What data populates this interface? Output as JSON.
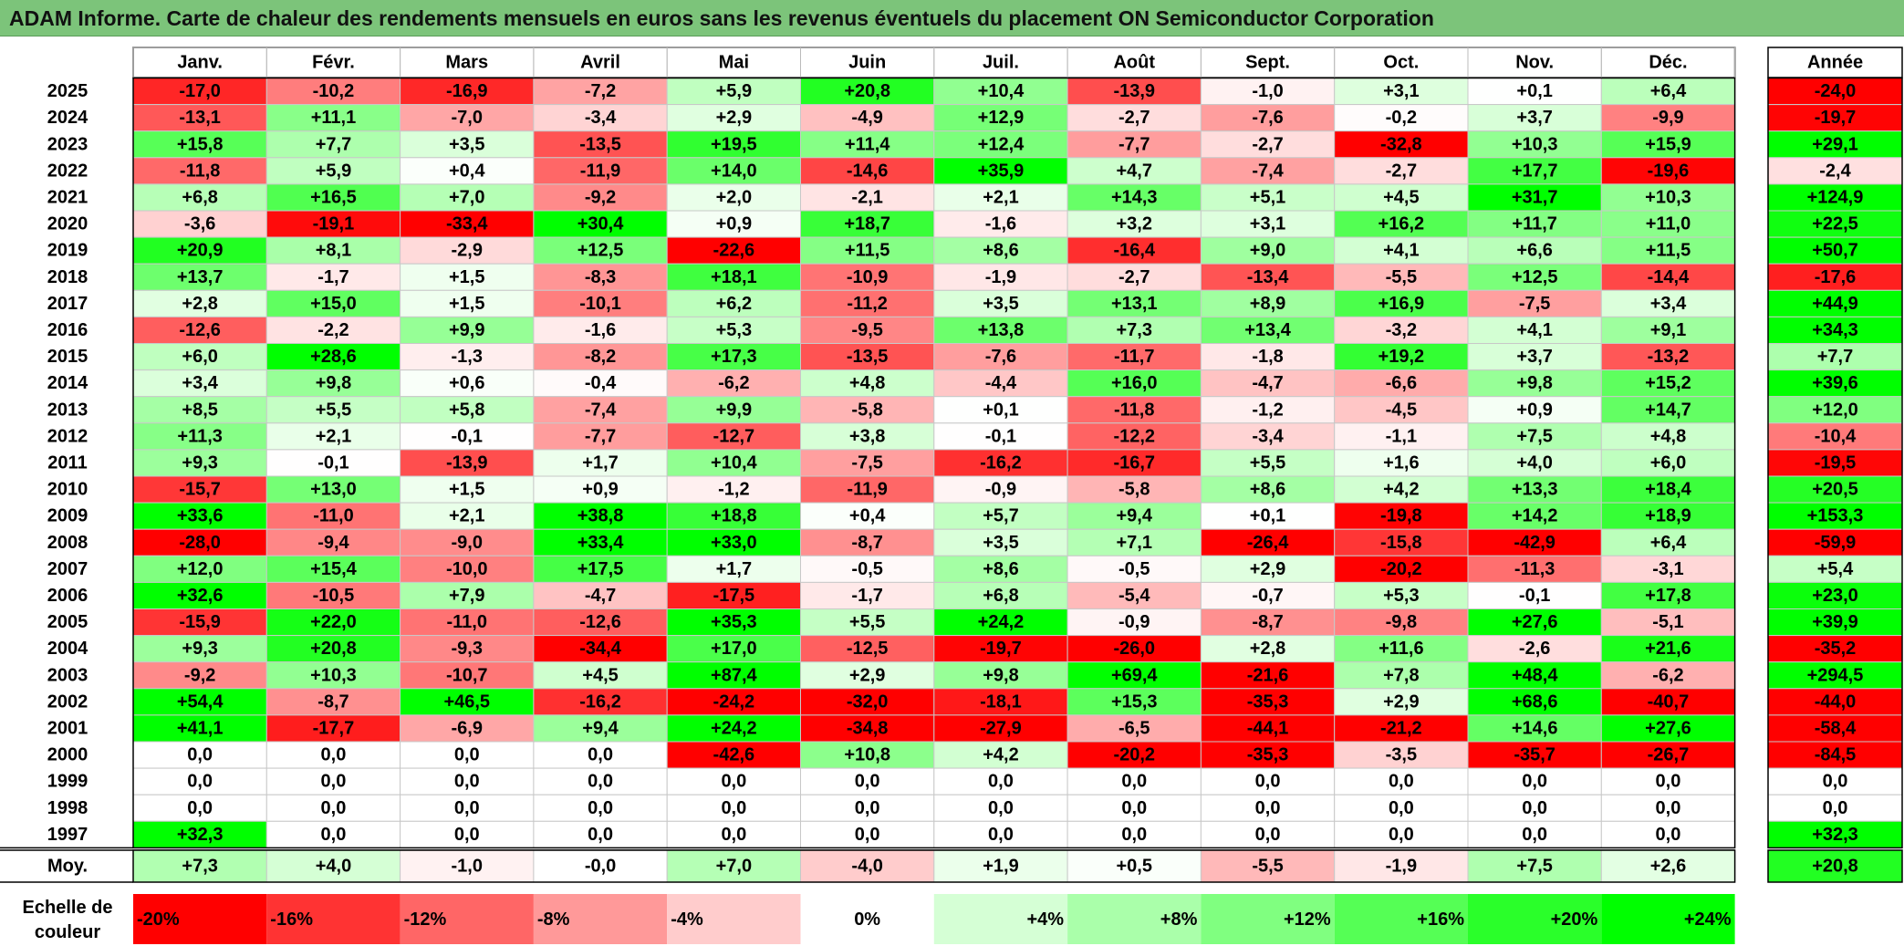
{
  "title": "ADAM Informe. Carte de chaleur des rendements mensuels en euros sans les revenus éventuels du placement ON Semiconductor Corporation",
  "chart_data": {
    "type": "heatmap",
    "title": "ADAM Informe. Carte de chaleur des rendements mensuels en euros sans les revenus éventuels du placement ON Semiconductor Corporation",
    "months": [
      "Janv.",
      "Févr.",
      "Mars",
      "Avril",
      "Mai",
      "Juin",
      "Juil.",
      "Août",
      "Sept.",
      "Oct.",
      "Nov.",
      "Déc."
    ],
    "year_column_label": "Année",
    "rows": [
      {
        "year": "2025",
        "values": [
          "-17,0",
          "-10,2",
          "-16,9",
          "-7,2",
          "+5,9",
          "+20,8",
          "+10,4",
          "-13,9",
          "-1,0",
          "+3,1",
          "+0,1",
          "+6,4"
        ],
        "annual": "-24,0"
      },
      {
        "year": "2024",
        "values": [
          "-13,1",
          "+11,1",
          "-7,0",
          "-3,4",
          "+2,9",
          "-4,9",
          "+12,9",
          "-2,7",
          "-7,6",
          "-0,2",
          "+3,7",
          "-9,9"
        ],
        "annual": "-19,7"
      },
      {
        "year": "2023",
        "values": [
          "+15,8",
          "+7,7",
          "+3,5",
          "-13,5",
          "+19,5",
          "+11,4",
          "+12,4",
          "-7,7",
          "-2,7",
          "-32,8",
          "+10,3",
          "+15,9"
        ],
        "annual": "+29,1"
      },
      {
        "year": "2022",
        "values": [
          "-11,8",
          "+5,9",
          "+0,4",
          "-11,9",
          "+14,0",
          "-14,6",
          "+35,9",
          "+4,7",
          "-7,4",
          "-2,7",
          "+17,7",
          "-19,6"
        ],
        "annual": "-2,4"
      },
      {
        "year": "2021",
        "values": [
          "+6,8",
          "+16,5",
          "+7,0",
          "-9,2",
          "+2,0",
          "-2,1",
          "+2,1",
          "+14,3",
          "+5,1",
          "+4,5",
          "+31,7",
          "+10,3"
        ],
        "annual": "+124,9"
      },
      {
        "year": "2020",
        "values": [
          "-3,6",
          "-19,1",
          "-33,4",
          "+30,4",
          "+0,9",
          "+18,7",
          "-1,6",
          "+3,2",
          "+3,1",
          "+16,2",
          "+11,7",
          "+11,0"
        ],
        "annual": "+22,5"
      },
      {
        "year": "2019",
        "values": [
          "+20,9",
          "+8,1",
          "-2,9",
          "+12,5",
          "-22,6",
          "+11,5",
          "+8,6",
          "-16,4",
          "+9,0",
          "+4,1",
          "+6,6",
          "+11,5"
        ],
        "annual": "+50,7"
      },
      {
        "year": "2018",
        "values": [
          "+13,7",
          "-1,7",
          "+1,5",
          "-8,3",
          "+18,1",
          "-10,9",
          "-1,9",
          "-2,7",
          "-13,4",
          "-5,5",
          "+12,5",
          "-14,4"
        ],
        "annual": "-17,6"
      },
      {
        "year": "2017",
        "values": [
          "+2,8",
          "+15,0",
          "+1,5",
          "-10,1",
          "+6,2",
          "-11,2",
          "+3,5",
          "+13,1",
          "+8,9",
          "+16,9",
          "-7,5",
          "+3,4"
        ],
        "annual": "+44,9"
      },
      {
        "year": "2016",
        "values": [
          "-12,6",
          "-2,2",
          "+9,9",
          "-1,6",
          "+5,3",
          "-9,5",
          "+13,8",
          "+7,3",
          "+13,4",
          "-3,2",
          "+4,1",
          "+9,1"
        ],
        "annual": "+34,3"
      },
      {
        "year": "2015",
        "values": [
          "+6,0",
          "+28,6",
          "-1,3",
          "-8,2",
          "+17,3",
          "-13,5",
          "-7,6",
          "-11,7",
          "-1,8",
          "+19,2",
          "+3,7",
          "-13,2"
        ],
        "annual": "+7,7"
      },
      {
        "year": "2014",
        "values": [
          "+3,4",
          "+9,8",
          "+0,6",
          "-0,4",
          "-6,2",
          "+4,8",
          "-4,4",
          "+16,0",
          "-4,7",
          "-6,6",
          "+9,8",
          "+15,2"
        ],
        "annual": "+39,6"
      },
      {
        "year": "2013",
        "values": [
          "+8,5",
          "+5,5",
          "+5,8",
          "-7,4",
          "+9,9",
          "-5,8",
          "+0,1",
          "-11,8",
          "-1,2",
          "-4,5",
          "+0,9",
          "+14,7"
        ],
        "annual": "+12,0"
      },
      {
        "year": "2012",
        "values": [
          "+11,3",
          "+2,1",
          "-0,1",
          "-7,7",
          "-12,7",
          "+3,8",
          "-0,1",
          "-12,2",
          "-3,4",
          "-1,1",
          "+7,5",
          "+4,8"
        ],
        "annual": "-10,4"
      },
      {
        "year": "2011",
        "values": [
          "+9,3",
          "-0,1",
          "-13,9",
          "+1,7",
          "+10,4",
          "-7,5",
          "-16,2",
          "-16,7",
          "+5,5",
          "+1,6",
          "+4,0",
          "+6,0"
        ],
        "annual": "-19,5"
      },
      {
        "year": "2010",
        "values": [
          "-15,7",
          "+13,0",
          "+1,5",
          "+0,9",
          "-1,2",
          "-11,9",
          "-0,9",
          "-5,8",
          "+8,6",
          "+4,2",
          "+13,3",
          "+18,4"
        ],
        "annual": "+20,5"
      },
      {
        "year": "2009",
        "values": [
          "+33,6",
          "-11,0",
          "+2,1",
          "+38,8",
          "+18,8",
          "+0,4",
          "+5,7",
          "+9,4",
          "+0,1",
          "-19,8",
          "+14,2",
          "+18,9"
        ],
        "annual": "+153,3"
      },
      {
        "year": "2008",
        "values": [
          "-28,0",
          "-9,4",
          "-9,0",
          "+33,4",
          "+33,0",
          "-8,7",
          "+3,5",
          "+7,1",
          "-26,4",
          "-15,8",
          "-42,9",
          "+6,4"
        ],
        "annual": "-59,9"
      },
      {
        "year": "2007",
        "values": [
          "+12,0",
          "+15,4",
          "-10,0",
          "+17,5",
          "+1,7",
          "-0,5",
          "+8,6",
          "-0,5",
          "+2,9",
          "-20,2",
          "-11,3",
          "-3,1"
        ],
        "annual": "+5,4"
      },
      {
        "year": "2006",
        "values": [
          "+32,6",
          "-10,5",
          "+7,9",
          "-4,7",
          "-17,5",
          "-1,7",
          "+6,8",
          "-5,4",
          "-0,7",
          "+5,3",
          "-0,1",
          "+17,8"
        ],
        "annual": "+23,0"
      },
      {
        "year": "2005",
        "values": [
          "-15,9",
          "+22,0",
          "-11,0",
          "-12,6",
          "+35,3",
          "+5,5",
          "+24,2",
          "-0,9",
          "-8,7",
          "-9,8",
          "+27,6",
          "-5,1"
        ],
        "annual": "+39,9"
      },
      {
        "year": "2004",
        "values": [
          "+9,3",
          "+20,8",
          "-9,3",
          "-34,4",
          "+17,0",
          "-12,5",
          "-19,7",
          "-26,0",
          "+2,8",
          "+11,6",
          "-2,6",
          "+21,6"
        ],
        "annual": "-35,2"
      },
      {
        "year": "2003",
        "values": [
          "-9,2",
          "+10,3",
          "-10,7",
          "+4,5",
          "+87,4",
          "+2,9",
          "+9,8",
          "+69,4",
          "-21,6",
          "+7,8",
          "+48,4",
          "-6,2"
        ],
        "annual": "+294,5"
      },
      {
        "year": "2002",
        "values": [
          "+54,4",
          "-8,7",
          "+46,5",
          "-16,2",
          "-24,2",
          "-32,0",
          "-18,1",
          "+15,3",
          "-35,3",
          "+2,9",
          "+68,6",
          "-40,7"
        ],
        "annual": "-44,0"
      },
      {
        "year": "2001",
        "values": [
          "+41,1",
          "-17,7",
          "-6,9",
          "+9,4",
          "+24,2",
          "-34,8",
          "-27,9",
          "-6,5",
          "-44,1",
          "-21,2",
          "+14,6",
          "+27,6"
        ],
        "annual": "-58,4"
      },
      {
        "year": "2000",
        "values": [
          "0,0",
          "0,0",
          "0,0",
          "0,0",
          "-42,6",
          "+10,8",
          "+4,2",
          "-20,2",
          "-35,3",
          "-3,5",
          "-35,7",
          "-26,7"
        ],
        "annual": "-84,5"
      },
      {
        "year": "1999",
        "values": [
          "0,0",
          "0,0",
          "0,0",
          "0,0",
          "0,0",
          "0,0",
          "0,0",
          "0,0",
          "0,0",
          "0,0",
          "0,0",
          "0,0"
        ],
        "annual": "0,0"
      },
      {
        "year": "1998",
        "values": [
          "0,0",
          "0,0",
          "0,0",
          "0,0",
          "0,0",
          "0,0",
          "0,0",
          "0,0",
          "0,0",
          "0,0",
          "0,0",
          "0,0"
        ],
        "annual": "0,0"
      },
      {
        "year": "1997",
        "values": [
          "+32,3",
          "0,0",
          "0,0",
          "0,0",
          "0,0",
          "0,0",
          "0,0",
          "0,0",
          "0,0",
          "0,0",
          "0,0",
          "0,0"
        ],
        "annual": "+32,3"
      }
    ],
    "average": {
      "label": "Moy.",
      "values": [
        "+7,3",
        "+4,0",
        "-1,0",
        "-0,0",
        "+7,0",
        "-4,0",
        "+1,9",
        "+0,5",
        "-5,5",
        "-1,9",
        "+7,5",
        "+2,6"
      ],
      "annual": "+20,8"
    },
    "color_scale": {
      "label": "Echelle de couleur",
      "steps": [
        "-20%",
        "-16%",
        "-12%",
        "-8%",
        "-4%",
        "0%",
        "+4%",
        "+8%",
        "+12%",
        "+16%",
        "+20%",
        "+24%"
      ],
      "min": -20,
      "max": 24,
      "negative_color": "#ff0000",
      "positive_color": "#00ff00",
      "neutral_color": "#ffffff"
    }
  }
}
